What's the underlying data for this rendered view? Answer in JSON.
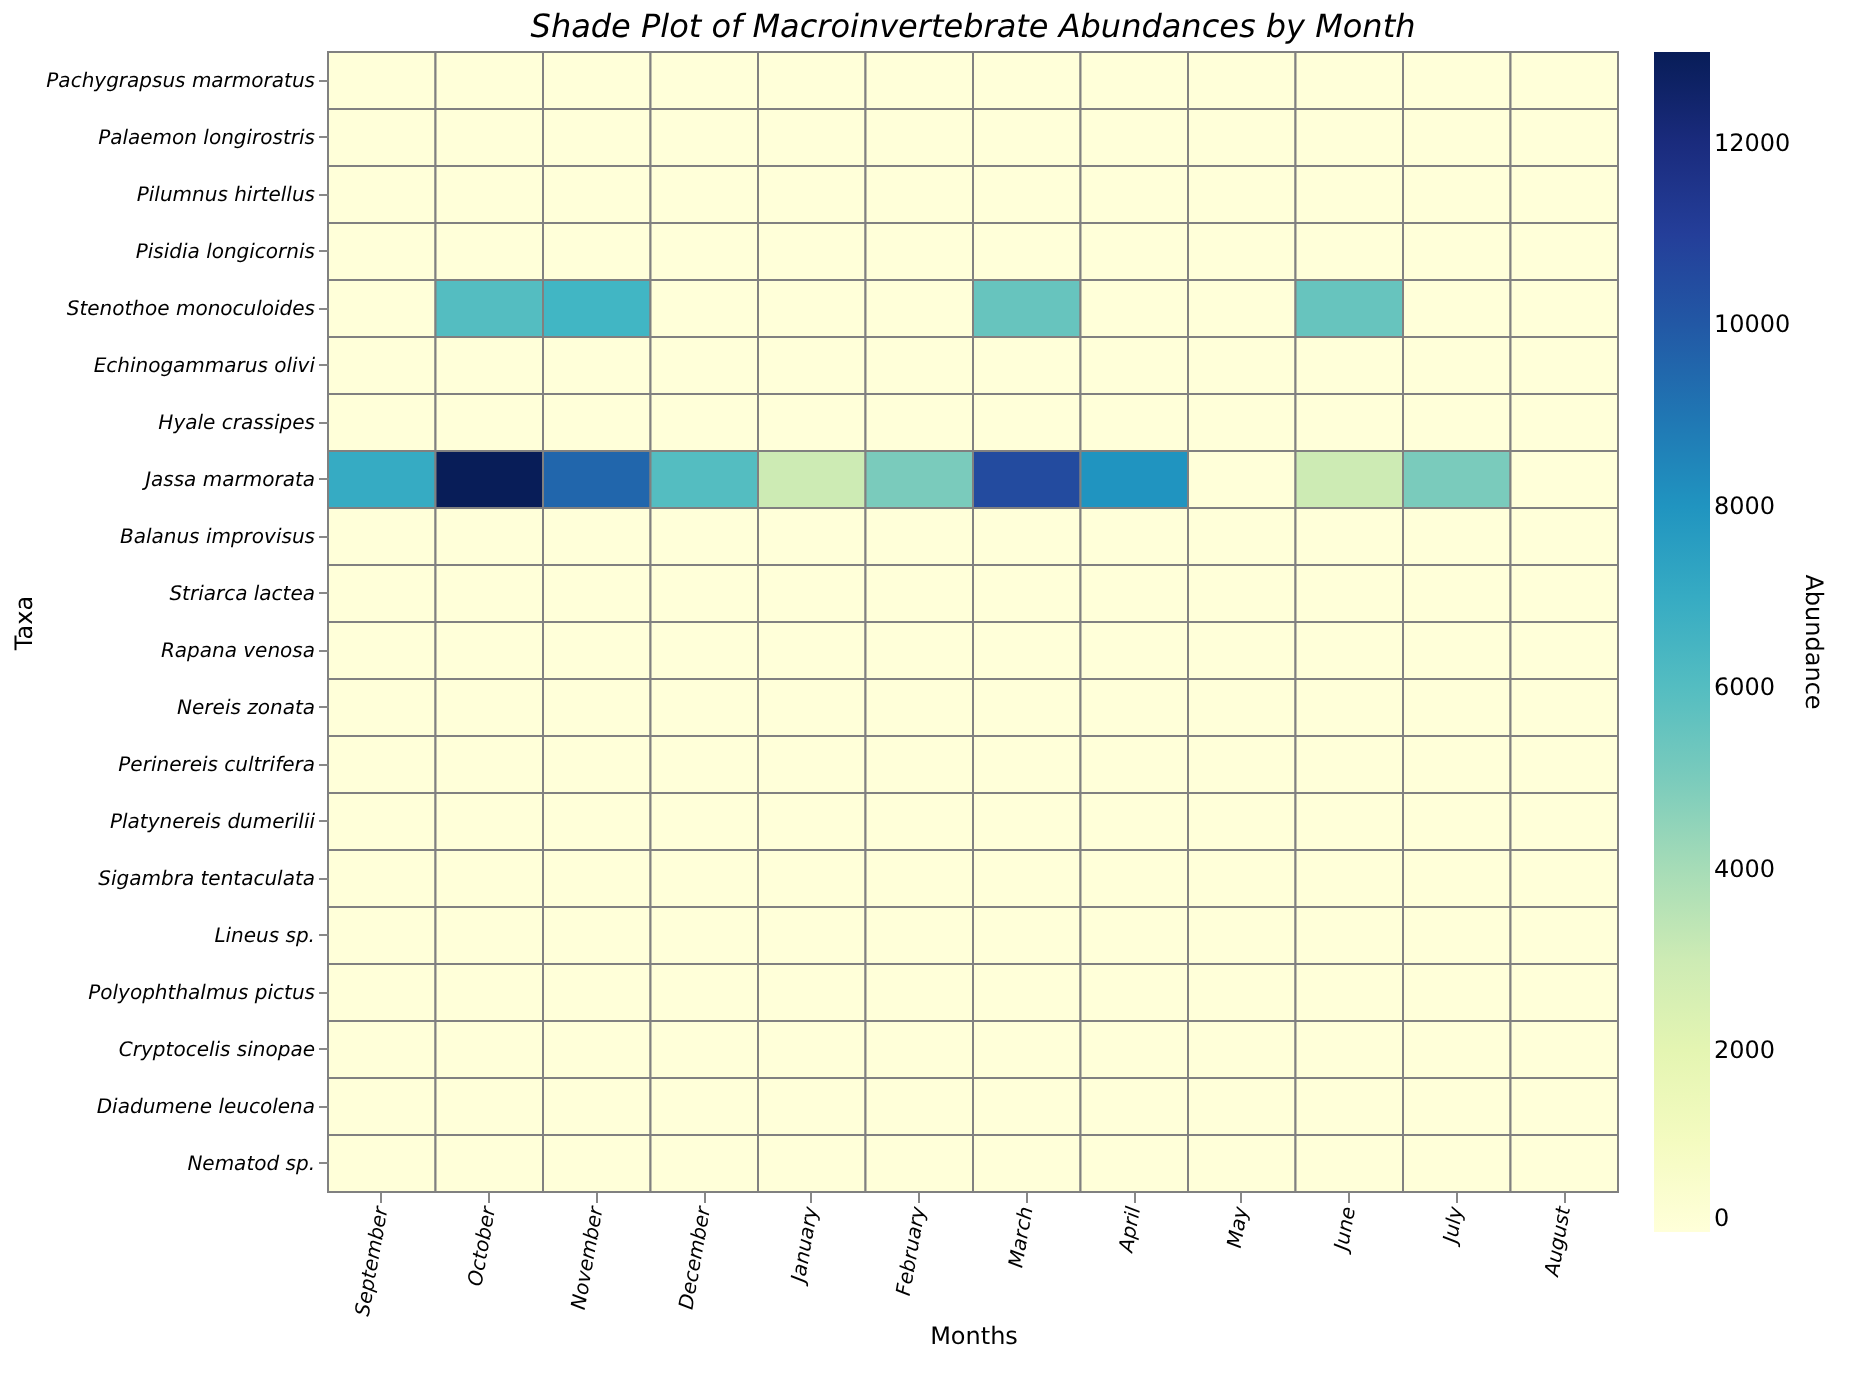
{
  "chart_data": {
    "type": "heatmap",
    "title": "Shade Plot of Macroinvertebrate Abundances by Month",
    "xlabel": "Months",
    "ylabel": "Taxa",
    "clabel": "Abundance",
    "categories": [
      "September",
      "October",
      "November",
      "December",
      "January",
      "February",
      "March",
      "April",
      "May",
      "June",
      "July",
      "August"
    ],
    "y_categories": [
      "Pachygrapsus marmoratus",
      "Palaemon longirostris",
      "Pilumnus hirtellus",
      "Pisidia longicornis",
      "Stenothoe monoculoides",
      "Echinogammarus olivi",
      "Hyale crassipes",
      "Jassa marmorata",
      "Balanus improvisus",
      "Striarca lactea",
      "Rapana venosa",
      "Nereis zonata",
      "Perinereis cultrifera",
      "Platynereis dumerilii",
      "Sigambra tentaculata",
      "Lineus sp.",
      "Polyophthalmus pictus",
      "Cryptocelis sinopae",
      "Diadumene leucolena",
      "Nematod sp."
    ],
    "cells": [
      [
        0,
        0,
        0,
        0,
        0,
        0,
        0,
        0,
        0,
        0,
        0,
        0
      ],
      [
        0,
        0,
        0,
        0,
        0,
        0,
        0,
        0,
        0,
        0,
        0,
        0
      ],
      [
        0,
        0,
        0,
        0,
        0,
        0,
        0,
        0,
        0,
        0,
        0,
        0
      ],
      [
        0,
        0,
        0,
        0,
        0,
        0,
        0,
        0,
        0,
        0,
        0,
        0
      ],
      [
        0,
        6000,
        6500,
        0,
        0,
        0,
        5500,
        0,
        0,
        5500,
        0,
        0
      ],
      [
        0,
        0,
        0,
        0,
        0,
        0,
        0,
        0,
        0,
        0,
        0,
        0
      ],
      [
        0,
        0,
        0,
        0,
        0,
        0,
        0,
        0,
        0,
        0,
        0,
        0
      ],
      [
        7000,
        13000,
        9500,
        6000,
        3000,
        5000,
        10500,
        8000,
        0,
        3000,
        5000,
        0
      ],
      [
        0,
        0,
        0,
        0,
        0,
        0,
        0,
        0,
        0,
        0,
        0,
        0
      ],
      [
        0,
        0,
        0,
        0,
        0,
        0,
        0,
        0,
        0,
        0,
        0,
        0
      ],
      [
        0,
        0,
        0,
        0,
        0,
        0,
        0,
        0,
        0,
        0,
        0,
        0
      ],
      [
        0,
        0,
        0,
        0,
        0,
        0,
        0,
        0,
        0,
        0,
        0,
        0
      ],
      [
        0,
        0,
        0,
        0,
        0,
        0,
        0,
        0,
        0,
        0,
        0,
        0
      ],
      [
        0,
        0,
        0,
        0,
        0,
        0,
        0,
        0,
        0,
        0,
        0,
        0
      ],
      [
        0,
        0,
        0,
        0,
        0,
        0,
        0,
        0,
        0,
        0,
        0,
        0
      ],
      [
        0,
        0,
        0,
        0,
        0,
        0,
        0,
        0,
        0,
        0,
        0,
        0
      ],
      [
        0,
        0,
        0,
        0,
        0,
        0,
        0,
        0,
        0,
        0,
        0,
        0
      ],
      [
        0,
        0,
        0,
        0,
        0,
        0,
        0,
        0,
        0,
        0,
        0,
        0
      ],
      [
        0,
        0,
        0,
        0,
        0,
        0,
        0,
        0,
        0,
        0,
        0,
        0
      ],
      [
        0,
        0,
        0,
        0,
        0,
        0,
        0,
        0,
        0,
        0,
        0,
        0
      ]
    ],
    "clim": [
      0,
      13000
    ],
    "cticks": [
      0,
      2000,
      4000,
      6000,
      8000,
      10000,
      12000
    ]
  }
}
